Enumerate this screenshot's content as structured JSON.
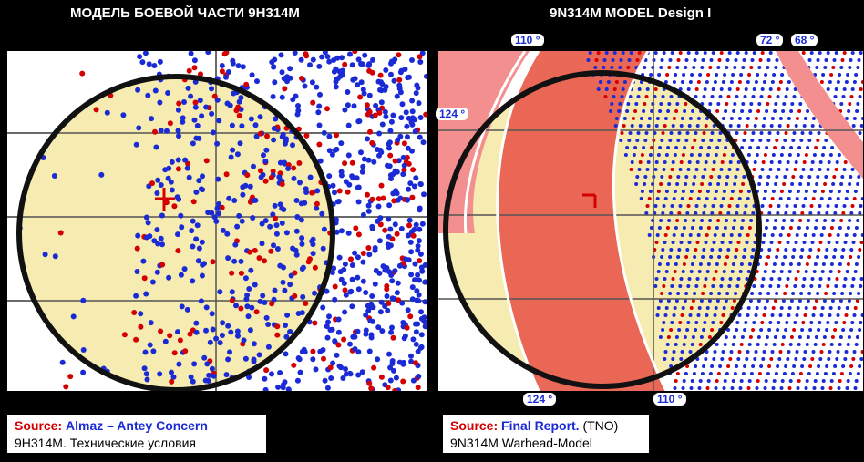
{
  "left": {
    "title": "МОДЕЛЬ БОЕВОЙ ЧАСТИ 9Н314М",
    "source_label": "Source:",
    "source_value": "Almaz – Antey Concern",
    "subtitle": "9Н314М.  Технические  условия"
  },
  "right": {
    "title": "9N314M MODEL Design I",
    "source_label": "Source:",
    "source_value": "Final Report.",
    "source_extra": "(TNO)",
    "subtitle": "9N314M  Warhead-Model",
    "angles": {
      "top_left": "110 °",
      "top_right_a": "72 °",
      "top_right_b": "68 °",
      "left": "124 °",
      "bottom_left": "124 °",
      "bottom_right": "110 °"
    }
  },
  "colors": {
    "circle_fill": "#f6ebb0",
    "fragment_heavy": "#1a2bd6",
    "fragment_light": "#d40000",
    "band_fill": "#e8604f",
    "band_light": "#f48f8f"
  }
}
